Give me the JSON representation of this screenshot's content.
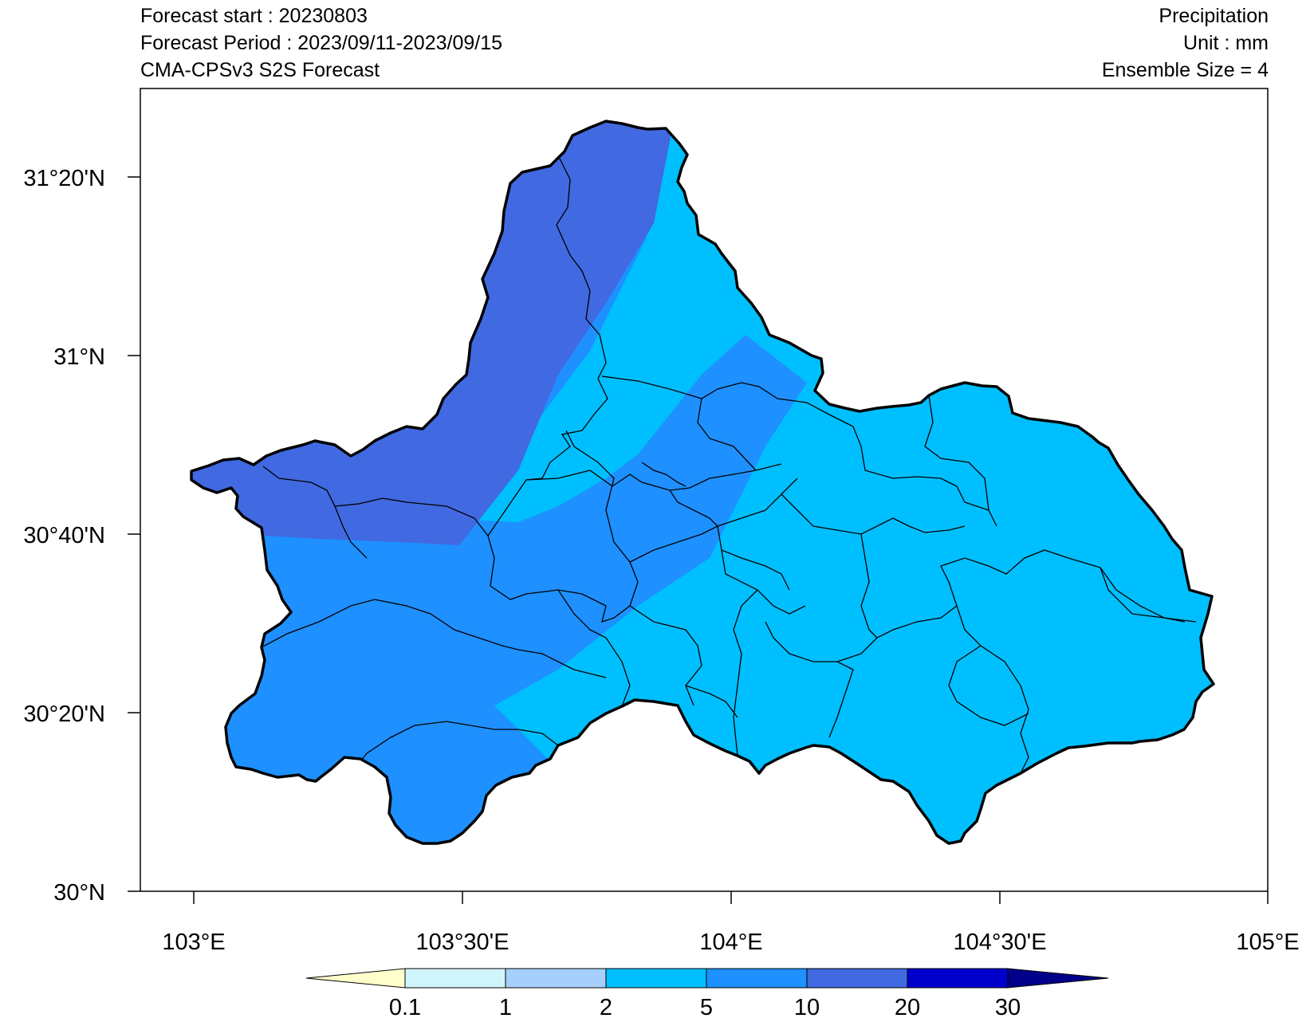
{
  "header": {
    "left_line1": "Forecast start : 20230803",
    "left_line2": "Forecast Period : 2023/09/11-2023/09/15",
    "left_line3": "CMA-CPSv3 S2S Forecast",
    "right_line1": "Precipitation",
    "right_line2": "Unit : mm",
    "right_line3": "Ensemble Size = 4"
  },
  "axes": {
    "lat_labels": [
      "31°20'N",
      "31°N",
      "30°40'N",
      "30°20'N",
      "30°N"
    ],
    "lon_labels": [
      "103°E",
      "103°30'E",
      "104°E",
      "104°30'E",
      "105°E"
    ]
  },
  "colorbar": {
    "labels": [
      "0.1",
      "1",
      "2",
      "5",
      "10",
      "20",
      "30"
    ],
    "colors": [
      "#FFFFCC",
      "#D1F5FD",
      "#A6D0FB",
      "#00BFFF",
      "#1E90FF",
      "#4169E1",
      "#0000CD",
      "#00008B"
    ]
  },
  "colors": {
    "region_2_5": "#00BFFF",
    "region_5_10": "#1E90FF",
    "region_10_20": "#4169E1"
  }
}
